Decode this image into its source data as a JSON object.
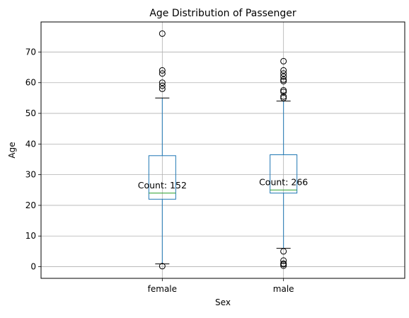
{
  "chart_data": {
    "type": "box",
    "title": "Age Distribution of Passenger",
    "xlabel": "Sex",
    "ylabel": "Age",
    "ylim": [
      -3.8,
      79.8
    ],
    "yticks": [
      0,
      10,
      20,
      30,
      40,
      50,
      60,
      70
    ],
    "grid": true,
    "colors": {
      "box": "#1f77b4",
      "median": "#2ca02c",
      "whisker": "#1f77b4",
      "cap": "#000000",
      "flier": "#000000",
      "grid": "#b0b0b0"
    },
    "categories": [
      "female",
      "male"
    ],
    "boxes": [
      {
        "category": "female",
        "q1": 22,
        "median": 24,
        "q3": 36.2,
        "whisker_low": 0.9,
        "whisker_high": 55,
        "outliers": [
          0.17,
          58,
          59,
          60,
          63,
          64,
          76
        ],
        "annotation": "Count: 152",
        "annotation_y": 26
      },
      {
        "category": "male",
        "q1": 24,
        "median": 25,
        "q3": 36.5,
        "whisker_low": 6,
        "whisker_high": 54,
        "outliers": [
          0.33,
          0.83,
          1,
          2,
          5,
          55,
          55.5,
          57,
          57.5,
          60.5,
          61,
          62,
          63,
          64,
          67
        ],
        "annotation": "Count: 266",
        "annotation_y": 27
      }
    ]
  }
}
